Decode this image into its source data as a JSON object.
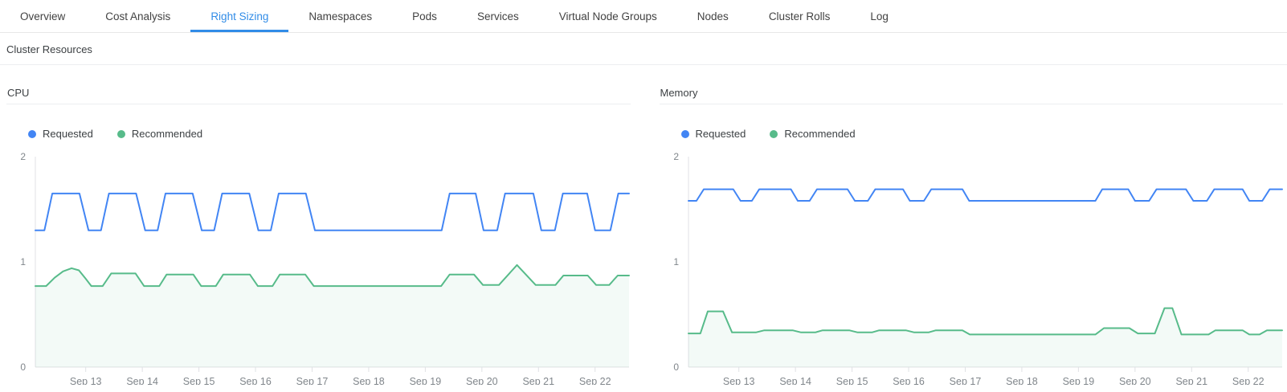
{
  "tabs": {
    "items": [
      {
        "label": "Overview",
        "active": false
      },
      {
        "label": "Cost Analysis",
        "active": false
      },
      {
        "label": "Right Sizing",
        "active": true
      },
      {
        "label": "Namespaces",
        "active": false
      },
      {
        "label": "Pods",
        "active": false
      },
      {
        "label": "Services",
        "active": false
      },
      {
        "label": "Virtual Node Groups",
        "active": false
      },
      {
        "label": "Nodes",
        "active": false
      },
      {
        "label": "Cluster Rolls",
        "active": false
      },
      {
        "label": "Log",
        "active": false
      }
    ]
  },
  "section": {
    "title": "Cluster Resources"
  },
  "colors": {
    "active_tab": "#318ce7",
    "requested": "#4285f4",
    "recommended": "#57bb8a",
    "axis": "#e0e2e5",
    "tick_label": "#80868b",
    "divider": "#eceef0"
  },
  "chart_data": [
    {
      "type": "line",
      "title": "CPU",
      "x_unit": "days (Sep 12 = 0)",
      "xlim": [
        0.11,
        10.6
      ],
      "ylim": [
        0,
        2
      ],
      "grid": false,
      "legend_position": "top-left",
      "y_ticks": [
        {
          "label": "0",
          "value": 0
        },
        {
          "label": "1",
          "value": 1
        },
        {
          "label": "2",
          "value": 2
        }
      ],
      "x_ticks": [
        {
          "label": "Sep 13",
          "value": 1
        },
        {
          "label": "Sep 14",
          "value": 2
        },
        {
          "label": "Sep 15",
          "value": 3
        },
        {
          "label": "Sep 16",
          "value": 4
        },
        {
          "label": "Sep 17",
          "value": 5
        },
        {
          "label": "Sep 18",
          "value": 6
        },
        {
          "label": "Sep 19",
          "value": 7
        },
        {
          "label": "Sep 20",
          "value": 8
        },
        {
          "label": "Sep 21",
          "value": 9
        },
        {
          "label": "Sep 22",
          "value": 10
        }
      ],
      "series": [
        {
          "name": "Requested",
          "color": "#4285f4",
          "fill": false,
          "points": [
            [
              0.11,
              1.3
            ],
            [
              0.27,
              1.3
            ],
            [
              0.41,
              1.65
            ],
            [
              0.89,
              1.65
            ],
            [
              1.05,
              1.3
            ],
            [
              1.27,
              1.3
            ],
            [
              1.41,
              1.65
            ],
            [
              1.89,
              1.65
            ],
            [
              2.05,
              1.3
            ],
            [
              2.27,
              1.3
            ],
            [
              2.41,
              1.65
            ],
            [
              2.89,
              1.65
            ],
            [
              3.05,
              1.3
            ],
            [
              3.27,
              1.3
            ],
            [
              3.41,
              1.65
            ],
            [
              3.89,
              1.65
            ],
            [
              4.05,
              1.3
            ],
            [
              4.27,
              1.3
            ],
            [
              4.41,
              1.65
            ],
            [
              4.89,
              1.65
            ],
            [
              5.05,
              1.3
            ],
            [
              7.29,
              1.3
            ],
            [
              7.43,
              1.65
            ],
            [
              7.89,
              1.65
            ],
            [
              8.03,
              1.3
            ],
            [
              8.27,
              1.3
            ],
            [
              8.41,
              1.65
            ],
            [
              8.91,
              1.65
            ],
            [
              9.05,
              1.3
            ],
            [
              9.29,
              1.3
            ],
            [
              9.43,
              1.65
            ],
            [
              9.86,
              1.65
            ],
            [
              10.0,
              1.3
            ],
            [
              10.27,
              1.3
            ],
            [
              10.41,
              1.65
            ],
            [
              10.6,
              1.65
            ]
          ]
        },
        {
          "name": "Recommended",
          "color": "#57bb8a",
          "fill": true,
          "fill_opacity": 0.07,
          "points": [
            [
              0.11,
              0.77
            ],
            [
              0.3,
              0.77
            ],
            [
              0.45,
              0.85
            ],
            [
              0.6,
              0.91
            ],
            [
              0.75,
              0.94
            ],
            [
              0.88,
              0.92
            ],
            [
              1.0,
              0.84
            ],
            [
              1.1,
              0.77
            ],
            [
              1.3,
              0.77
            ],
            [
              1.45,
              0.89
            ],
            [
              1.88,
              0.89
            ],
            [
              2.03,
              0.77
            ],
            [
              2.3,
              0.77
            ],
            [
              2.43,
              0.88
            ],
            [
              2.9,
              0.88
            ],
            [
              3.04,
              0.77
            ],
            [
              3.3,
              0.77
            ],
            [
              3.43,
              0.88
            ],
            [
              3.9,
              0.88
            ],
            [
              4.04,
              0.77
            ],
            [
              4.3,
              0.77
            ],
            [
              4.43,
              0.88
            ],
            [
              4.88,
              0.88
            ],
            [
              5.03,
              0.77
            ],
            [
              7.28,
              0.77
            ],
            [
              7.43,
              0.88
            ],
            [
              7.86,
              0.88
            ],
            [
              8.02,
              0.78
            ],
            [
              8.3,
              0.78
            ],
            [
              8.62,
              0.97
            ],
            [
              8.95,
              0.78
            ],
            [
              9.3,
              0.78
            ],
            [
              9.44,
              0.87
            ],
            [
              9.87,
              0.87
            ],
            [
              10.02,
              0.78
            ],
            [
              10.25,
              0.78
            ],
            [
              10.4,
              0.87
            ],
            [
              10.6,
              0.87
            ]
          ]
        }
      ]
    },
    {
      "type": "line",
      "title": "Memory",
      "x_unit": "days (Sep 12 = 0)",
      "xlim": [
        0.11,
        10.6
      ],
      "ylim": [
        0,
        2
      ],
      "grid": false,
      "legend_position": "top-left",
      "y_ticks": [
        {
          "label": "0",
          "value": 0
        },
        {
          "label": "1",
          "value": 1
        },
        {
          "label": "2",
          "value": 2
        }
      ],
      "x_ticks": [
        {
          "label": "Sep 13",
          "value": 1
        },
        {
          "label": "Sep 14",
          "value": 2
        },
        {
          "label": "Sep 15",
          "value": 3
        },
        {
          "label": "Sep 16",
          "value": 4
        },
        {
          "label": "Sep 17",
          "value": 5
        },
        {
          "label": "Sep 18",
          "value": 6
        },
        {
          "label": "Sep 19",
          "value": 7
        },
        {
          "label": "Sep 20",
          "value": 8
        },
        {
          "label": "Sep 21",
          "value": 9
        },
        {
          "label": "Sep 22",
          "value": 10
        }
      ],
      "series": [
        {
          "name": "Requested",
          "color": "#4285f4",
          "fill": false,
          "points": [
            [
              0.11,
              1.58
            ],
            [
              0.25,
              1.58
            ],
            [
              0.38,
              1.69
            ],
            [
              0.9,
              1.69
            ],
            [
              1.03,
              1.58
            ],
            [
              1.23,
              1.58
            ],
            [
              1.36,
              1.69
            ],
            [
              1.92,
              1.69
            ],
            [
              2.04,
              1.58
            ],
            [
              2.25,
              1.58
            ],
            [
              2.38,
              1.69
            ],
            [
              2.92,
              1.69
            ],
            [
              3.05,
              1.58
            ],
            [
              3.28,
              1.58
            ],
            [
              3.41,
              1.69
            ],
            [
              3.9,
              1.69
            ],
            [
              4.02,
              1.58
            ],
            [
              4.27,
              1.58
            ],
            [
              4.4,
              1.69
            ],
            [
              4.95,
              1.69
            ],
            [
              5.07,
              1.58
            ],
            [
              7.3,
              1.58
            ],
            [
              7.42,
              1.69
            ],
            [
              7.88,
              1.69
            ],
            [
              8.0,
              1.58
            ],
            [
              8.25,
              1.58
            ],
            [
              8.38,
              1.69
            ],
            [
              8.9,
              1.69
            ],
            [
              9.03,
              1.58
            ],
            [
              9.27,
              1.58
            ],
            [
              9.4,
              1.69
            ],
            [
              9.9,
              1.69
            ],
            [
              10.02,
              1.58
            ],
            [
              10.25,
              1.58
            ],
            [
              10.38,
              1.69
            ],
            [
              10.6,
              1.69
            ]
          ]
        },
        {
          "name": "Recommended",
          "color": "#57bb8a",
          "fill": true,
          "fill_opacity": 0.07,
          "points": [
            [
              0.11,
              0.32
            ],
            [
              0.32,
              0.32
            ],
            [
              0.45,
              0.53
            ],
            [
              0.72,
              0.53
            ],
            [
              0.88,
              0.33
            ],
            [
              1.3,
              0.33
            ],
            [
              1.45,
              0.35
            ],
            [
              1.95,
              0.35
            ],
            [
              2.1,
              0.33
            ],
            [
              2.35,
              0.33
            ],
            [
              2.48,
              0.35
            ],
            [
              2.95,
              0.35
            ],
            [
              3.1,
              0.33
            ],
            [
              3.35,
              0.33
            ],
            [
              3.48,
              0.35
            ],
            [
              3.95,
              0.35
            ],
            [
              4.1,
              0.33
            ],
            [
              4.35,
              0.33
            ],
            [
              4.48,
              0.35
            ],
            [
              4.95,
              0.35
            ],
            [
              5.08,
              0.31
            ],
            [
              7.3,
              0.31
            ],
            [
              7.45,
              0.37
            ],
            [
              7.9,
              0.37
            ],
            [
              8.05,
              0.32
            ],
            [
              8.35,
              0.32
            ],
            [
              8.52,
              0.56
            ],
            [
              8.66,
              0.56
            ],
            [
              8.82,
              0.31
            ],
            [
              9.3,
              0.31
            ],
            [
              9.42,
              0.35
            ],
            [
              9.9,
              0.35
            ],
            [
              10.02,
              0.31
            ],
            [
              10.2,
              0.31
            ],
            [
              10.33,
              0.35
            ],
            [
              10.6,
              0.35
            ]
          ]
        }
      ]
    }
  ]
}
